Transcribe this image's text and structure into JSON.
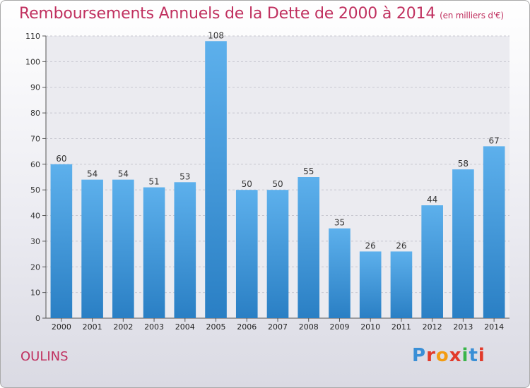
{
  "header": {
    "title": "Remboursements Annuels de la Dette de 2000 à 2014",
    "subtitle": "(en milliers d'€)"
  },
  "footer": {
    "place": "OULINS",
    "logo_text": "Proxiti",
    "logo_colors": [
      "#3a8fd6",
      "#e23a2a",
      "#f39c12",
      "#e23a2a",
      "#3ab54a",
      "#3a8fd6",
      "#e23a2a"
    ]
  },
  "chart_data": {
    "type": "bar",
    "title": "Remboursements Annuels de la Dette de 2000 à 2014",
    "xlabel": "",
    "ylabel": "",
    "categories": [
      "2000",
      "2001",
      "2002",
      "2003",
      "2004",
      "2005",
      "2006",
      "2007",
      "2008",
      "2009",
      "2010",
      "2011",
      "2012",
      "2013",
      "2014"
    ],
    "values": [
      60,
      54,
      54,
      51,
      53,
      108,
      50,
      50,
      55,
      35,
      26,
      26,
      44,
      58,
      67
    ],
    "ylim": [
      0,
      110
    ],
    "yticks": [
      0,
      10,
      20,
      30,
      40,
      50,
      60,
      70,
      80,
      90,
      100,
      110
    ],
    "grid": true,
    "bar_color": "#3f97dc",
    "bar_color_dark": "#2a7fc4"
  }
}
